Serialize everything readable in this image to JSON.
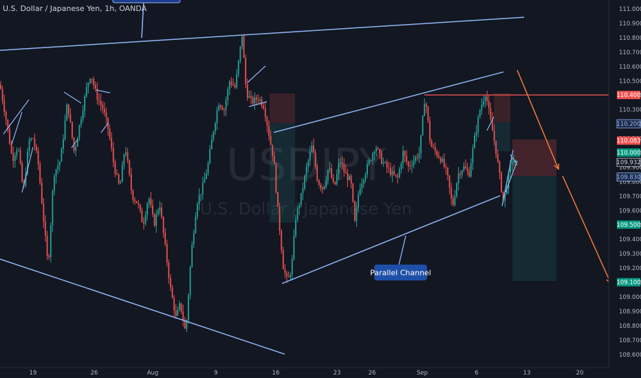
{
  "header": {
    "title": "U.S. Dollar / Japanese Yen, 1h, OANDA"
  },
  "watermark": {
    "symbol": "USDJPY",
    "name": "U.S. Dollar / Japanese Yen"
  },
  "annotation": {
    "label": "Parallel Channel"
  },
  "colors": {
    "bg": "#131722",
    "up": "#26a69a",
    "down": "#ef5350",
    "line": "#90b8f8",
    "arrow": "#f57c3c",
    "resistance": "#ef5350",
    "axis_text": "#b2b5be"
  },
  "chart_data": {
    "type": "candlestick",
    "title": "U.S. Dollar / Japanese Yen, 1h, OANDA",
    "ylim": [
      108.55,
      111.05
    ],
    "y_ticks": [
      "111.000",
      "110.900",
      "110.800",
      "110.700",
      "110.600",
      "110.500",
      "110.400",
      "110.300",
      "110.200",
      "110.100",
      "110.000",
      "109.900",
      "109.800",
      "109.700",
      "109.600",
      "109.500",
      "109.400",
      "109.300",
      "109.200",
      "109.100",
      "109.000",
      "108.900",
      "108.800",
      "108.700",
      "108.600"
    ],
    "x_ticks": [
      "19",
      "26",
      "Aug",
      "9",
      "16",
      "23",
      "26",
      "Sep",
      "6",
      "13",
      "20"
    ],
    "price_labels": [
      {
        "text": "110.400",
        "value": 110.4,
        "kind": "resistance"
      },
      {
        "text": "110.200",
        "value": 110.2,
        "kind": "line"
      },
      {
        "text": "110.083",
        "value": 110.083,
        "kind": "down"
      },
      {
        "text": "110.000",
        "value": 110.0,
        "kind": "up"
      },
      {
        "text": "109.932",
        "value": 109.932,
        "kind": "current"
      },
      {
        "text": "109.830",
        "value": 109.83,
        "kind": "line"
      },
      {
        "text": "109.500",
        "value": 109.5,
        "kind": "up"
      },
      {
        "text": "109.100",
        "value": 109.1,
        "kind": "up"
      }
    ],
    "price_path": [
      [
        0,
        110.47
      ],
      [
        10,
        110.2
      ],
      [
        18,
        109.95
      ],
      [
        26,
        110.05
      ],
      [
        34,
        109.72
      ],
      [
        42,
        110.08
      ],
      [
        48,
        110.1
      ],
      [
        55,
        109.95
      ],
      [
        62,
        109.6
      ],
      [
        70,
        109.2
      ],
      [
        78,
        109.85
      ],
      [
        88,
        109.95
      ],
      [
        98,
        110.35
      ],
      [
        108,
        110.0
      ],
      [
        118,
        110.25
      ],
      [
        126,
        110.45
      ],
      [
        132,
        110.55
      ],
      [
        140,
        110.4
      ],
      [
        150,
        110.3
      ],
      [
        158,
        110.15
      ],
      [
        166,
        109.9
      ],
      [
        174,
        109.75
      ],
      [
        182,
        110.05
      ],
      [
        192,
        109.7
      ],
      [
        200,
        109.65
      ],
      [
        208,
        109.5
      ],
      [
        216,
        109.7
      ],
      [
        224,
        109.5
      ],
      [
        232,
        109.65
      ],
      [
        240,
        109.35
      ],
      [
        248,
        109.05
      ],
      [
        256,
        108.85
      ],
      [
        262,
        108.95
      ],
      [
        270,
        108.74
      ],
      [
        278,
        109.3
      ],
      [
        286,
        109.65
      ],
      [
        294,
        109.75
      ],
      [
        302,
        109.9
      ],
      [
        310,
        110.15
      ],
      [
        318,
        110.35
      ],
      [
        326,
        110.3
      ],
      [
        334,
        110.5
      ],
      [
        342,
        110.45
      ],
      [
        352,
        110.82
      ],
      [
        358,
        110.42
      ],
      [
        366,
        110.35
      ],
      [
        376,
        110.38
      ],
      [
        384,
        110.32
      ],
      [
        392,
        110.1
      ],
      [
        398,
        109.95
      ],
      [
        404,
        109.6
      ],
      [
        412,
        109.2
      ],
      [
        418,
        109.1
      ],
      [
        424,
        109.2
      ],
      [
        430,
        109.55
      ],
      [
        438,
        109.7
      ],
      [
        446,
        109.9
      ],
      [
        454,
        110.05
      ],
      [
        462,
        109.8
      ],
      [
        470,
        109.75
      ],
      [
        478,
        109.9
      ],
      [
        486,
        109.75
      ],
      [
        494,
        109.95
      ],
      [
        502,
        109.85
      ],
      [
        510,
        109.8
      ],
      [
        516,
        109.5
      ],
      [
        522,
        109.75
      ],
      [
        530,
        109.85
      ],
      [
        538,
        109.95
      ],
      [
        546,
        110.05
      ],
      [
        554,
        109.95
      ],
      [
        562,
        109.9
      ],
      [
        570,
        109.85
      ],
      [
        578,
        109.82
      ],
      [
        586,
        110.0
      ],
      [
        594,
        109.9
      ],
      [
        602,
        109.95
      ],
      [
        610,
        110.0
      ],
      [
        618,
        110.4
      ],
      [
        626,
        110.05
      ],
      [
        634,
        110.0
      ],
      [
        642,
        109.95
      ],
      [
        650,
        109.85
      ],
      [
        658,
        109.62
      ],
      [
        666,
        109.85
      ],
      [
        674,
        109.9
      ],
      [
        682,
        109.85
      ],
      [
        690,
        110.1
      ],
      [
        698,
        110.3
      ],
      [
        706,
        110.42
      ],
      [
        714,
        110.2
      ],
      [
        720,
        110.05
      ],
      [
        726,
        109.85
      ],
      [
        732,
        109.65
      ],
      [
        738,
        109.8
      ],
      [
        744,
        109.95
      ],
      [
        750,
        109.932
      ]
    ],
    "trendlines": [
      {
        "name": "upper-long",
        "points": [
          [
            0,
            110.71
          ],
          [
            762,
            110.94
          ]
        ]
      },
      {
        "name": "lower-long",
        "points": [
          [
            0,
            109.26
          ],
          [
            414,
            108.6
          ]
        ]
      },
      {
        "name": "channel-top",
        "points": [
          [
            398,
            110.14
          ],
          [
            732,
            110.56
          ]
        ]
      },
      {
        "name": "channel-bottom",
        "points": [
          [
            410,
            109.09
          ],
          [
            727,
            109.7
          ]
        ]
      },
      {
        "name": "resistance",
        "value": 110.4
      }
    ]
  }
}
